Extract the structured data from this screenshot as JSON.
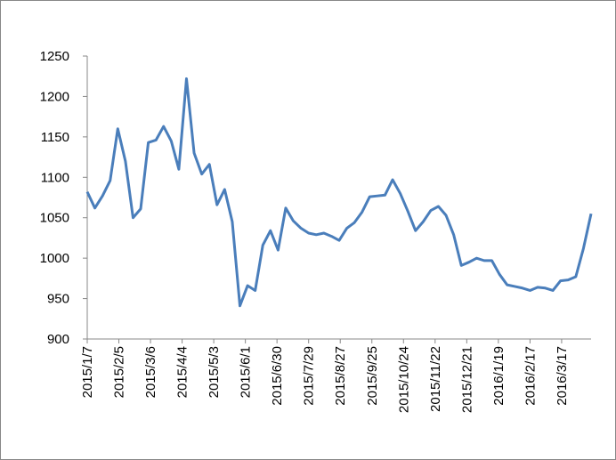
{
  "chart_data": {
    "type": "line",
    "x": [
      "2015/1/7",
      "2015/1/14",
      "2015/1/21",
      "2015/1/28",
      "2015/2/4",
      "2015/2/11",
      "2015/2/18",
      "2015/2/25",
      "2015/3/4",
      "2015/3/11",
      "2015/3/18",
      "2015/3/25",
      "2015/4/1",
      "2015/4/8",
      "2015/4/15",
      "2015/4/22",
      "2015/4/29",
      "2015/5/6",
      "2015/5/13",
      "2015/5/20",
      "2015/5/27",
      "2015/6/3",
      "2015/6/10",
      "2015/6/17",
      "2015/6/24",
      "2015/7/1",
      "2015/7/8",
      "2015/7/15",
      "2015/7/22",
      "2015/7/29",
      "2015/8/5",
      "2015/8/12",
      "2015/8/19",
      "2015/8/26",
      "2015/9/2",
      "2015/9/9",
      "2015/9/16",
      "2015/9/23",
      "2015/9/30",
      "2015/10/7",
      "2015/10/14",
      "2015/10/21",
      "2015/10/28",
      "2015/11/4",
      "2015/11/11",
      "2015/11/18",
      "2015/11/25",
      "2015/12/2",
      "2015/12/9",
      "2015/12/16",
      "2015/12/23",
      "2015/12/30",
      "2016/1/6",
      "2016/1/13",
      "2016/1/20",
      "2016/1/27",
      "2016/2/3",
      "2016/2/10",
      "2016/2/17",
      "2016/2/24",
      "2016/3/2",
      "2016/3/9",
      "2016/3/16",
      "2016/3/23",
      "2016/3/30",
      "2016/4/6",
      "2016/4/13"
    ],
    "series": [
      {
        "color": "#4a7ebb",
        "values": [
          1082,
          1062,
          1077,
          1096,
          1160,
          1120,
          1050,
          1061,
          1143,
          1146,
          1163,
          1145,
          1110,
          1222,
          1130,
          1104,
          1116,
          1066,
          1085,
          1045,
          941,
          966,
          960,
          1016,
          1034,
          1010,
          1062,
          1046,
          1037,
          1031,
          1029,
          1031,
          1027,
          1022,
          1037,
          1044,
          1057,
          1076,
          1077,
          1078,
          1097,
          1080,
          1058,
          1034,
          1045,
          1059,
          1064,
          1053,
          1029,
          991,
          995,
          1000,
          997,
          997,
          980,
          967,
          965,
          963,
          960,
          964,
          963,
          960,
          972,
          973,
          977,
          1012,
          1055
        ]
      }
    ],
    "xlim": [
      "2015/1/7",
      "2016/4/13"
    ],
    "xticks": [
      "2015/1/7",
      "2015/2/5",
      "2015/3/6",
      "2015/4/4",
      "2015/5/3",
      "2015/6/1",
      "2015/6/30",
      "2015/7/29",
      "2015/8/27",
      "2015/9/25",
      "2015/10/24",
      "2015/11/22",
      "2015/12/21",
      "2016/1/19",
      "2016/2/17",
      "2016/3/17"
    ],
    "ylim": [
      900,
      1250
    ],
    "yticks": [
      900,
      950,
      1000,
      1050,
      1100,
      1150,
      1200,
      1250
    ],
    "grid": false
  }
}
